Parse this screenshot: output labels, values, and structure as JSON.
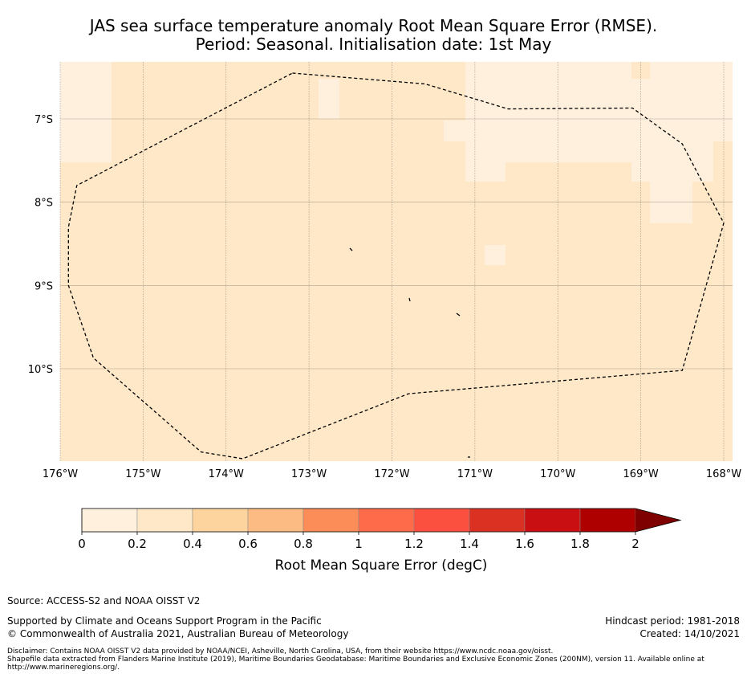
{
  "title": {
    "line1": "JAS sea surface temperature anomaly Root Mean Square Error (RMSE).",
    "line2": "Period: Seasonal. Initialisation date: 1st May"
  },
  "map": {
    "lon_ticks": [
      {
        "value": -176,
        "label": "176°W"
      },
      {
        "value": -175,
        "label": "175°W"
      },
      {
        "value": -174,
        "label": "174°W"
      },
      {
        "value": -173,
        "label": "173°W"
      },
      {
        "value": -172,
        "label": "172°W"
      },
      {
        "value": -171,
        "label": "171°W"
      },
      {
        "value": -170,
        "label": "170°W"
      },
      {
        "value": -169,
        "label": "169°W"
      },
      {
        "value": -168,
        "label": "168°W"
      }
    ],
    "lat_ticks": [
      {
        "value": -7,
        "label": "7°S"
      },
      {
        "value": -8,
        "label": "8°S"
      },
      {
        "value": -9,
        "label": "9°S"
      },
      {
        "value": -10,
        "label": "10°S"
      }
    ],
    "lon_range": [
      -176,
      -168.1
    ],
    "lat_range": [
      -11.1,
      -6.3
    ],
    "background_color": "#fee8c8",
    "low_error_color": "#fff0dd",
    "eez_boundary": [
      [
        -173.2,
        -6.45
      ],
      [
        -171.6,
        -6.58
      ],
      [
        -170.6,
        -6.88
      ],
      [
        -169.1,
        -6.87
      ],
      [
        -168.5,
        -7.3
      ],
      [
        -168.0,
        -8.25
      ],
      [
        -168.5,
        -10.02
      ],
      [
        -171.8,
        -10.3
      ],
      [
        -173.8,
        -11.08
      ],
      [
        -174.3,
        -11.0
      ],
      [
        -175.6,
        -9.87
      ],
      [
        -175.9,
        -9.0
      ],
      [
        -175.9,
        -8.3
      ],
      [
        -175.8,
        -7.8
      ]
    ]
  },
  "colorbar": {
    "ticks": [
      "0",
      "0.2",
      "0.4",
      "0.6",
      "0.8",
      "1",
      "1.2",
      "1.4",
      "1.6",
      "1.8",
      "2"
    ],
    "colors": [
      "#fff0dd",
      "#fee8c8",
      "#fdd49e",
      "#fdbb84",
      "#fc8d59",
      "#fd6b4b",
      "#fb5040",
      "#db3122",
      "#c90f12",
      "#af0000",
      "#7f0000"
    ],
    "label": "Root Mean Square Error (degC)"
  },
  "footer": {
    "source": "Source: ACCESS-S2 and NOAA OISST V2",
    "supported": "Supported by Climate and Oceans Support Program in the Pacific",
    "copyright": "© Commonwealth of Australia 2021, Australian Bureau of Meteorology",
    "hindcast": "Hindcast period: 1981-2018",
    "created": "Created: 14/10/2021",
    "disclaimer1": "Disclaimer: Contains NOAA OISST V2 data provided by NOAA/NCEI, Asheville, North Carolina, USA, from their website https://www.ncdc.noaa.gov/oisst.",
    "disclaimer2": "Shapefile data extracted from Flanders Marine Institute (2019), Maritime Boundaries Geodatabase: Maritime Boundaries and Exclusive Economic Zones (200NM), version 11. Available online at http://www.marineregions.org/."
  }
}
